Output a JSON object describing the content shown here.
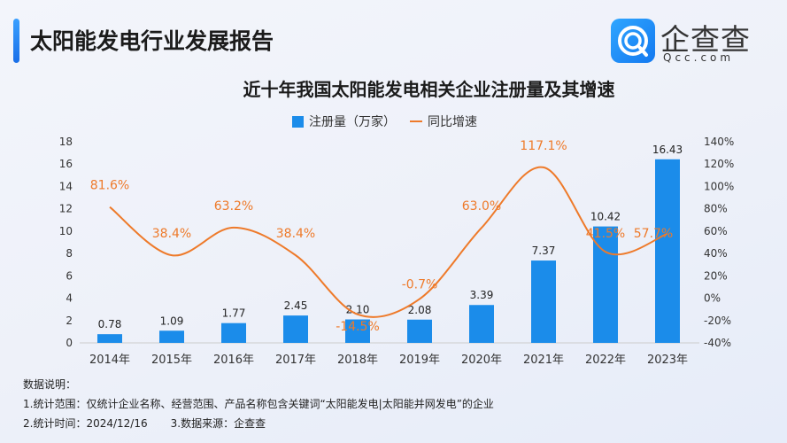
{
  "header": {
    "title": "太阳能发电行业发展报告",
    "logo_name": "企查查",
    "logo_url": "Qcc.com"
  },
  "chart_data": {
    "type": "bar+line",
    "title": "近十年我国太阳能发电相关企业注册量及其增速",
    "categories": [
      "2014年",
      "2015年",
      "2016年",
      "2017年",
      "2018年",
      "2019年",
      "2020年",
      "2021年",
      "2022年",
      "2023年"
    ],
    "series": [
      {
        "name": "注册量（万家）",
        "type": "bar",
        "axis": "left",
        "color": "#1b8cea",
        "values": [
          0.78,
          1.09,
          1.77,
          2.45,
          2.1,
          2.08,
          3.39,
          7.37,
          10.42,
          16.43
        ],
        "labels": [
          "0.78",
          "1.09",
          "1.77",
          "2.45",
          "2.10",
          "2.08",
          "3.39",
          "7.37",
          "10.42",
          "16.43"
        ]
      },
      {
        "name": "同比增速",
        "type": "line",
        "axis": "right",
        "color": "#ee7a2a",
        "values": [
          81.6,
          38.4,
          63.2,
          38.4,
          -14.5,
          -0.7,
          63.0,
          117.1,
          41.5,
          57.7
        ],
        "labels": [
          "81.6%",
          "38.4%",
          "63.2%",
          "38.4%",
          "-14.5%",
          "-0.7%",
          "63.0%",
          "117.1%",
          "41.5%",
          "57.7%"
        ]
      }
    ],
    "left_axis": {
      "ylim": [
        0,
        18
      ],
      "ticks": [
        "0",
        "2",
        "4",
        "6",
        "8",
        "10",
        "12",
        "14",
        "16",
        "18"
      ]
    },
    "right_axis": {
      "ylim": [
        -40,
        140
      ],
      "ticks": [
        "-40%",
        "-20%",
        "0%",
        "20%",
        "40%",
        "60%",
        "80%",
        "100%",
        "120%",
        "140%"
      ]
    },
    "grid": false,
    "legend": "top-center"
  },
  "notes": {
    "heading": "数据说明：",
    "line1": "1.统计范围：仅统计企业名称、经营范围、产品名称包含关键词“太阳能发电|太阳能并网发电”的企业",
    "line2a": "2.统计时间：2024/12/16",
    "line2b": "3.数据来源：企查查"
  }
}
